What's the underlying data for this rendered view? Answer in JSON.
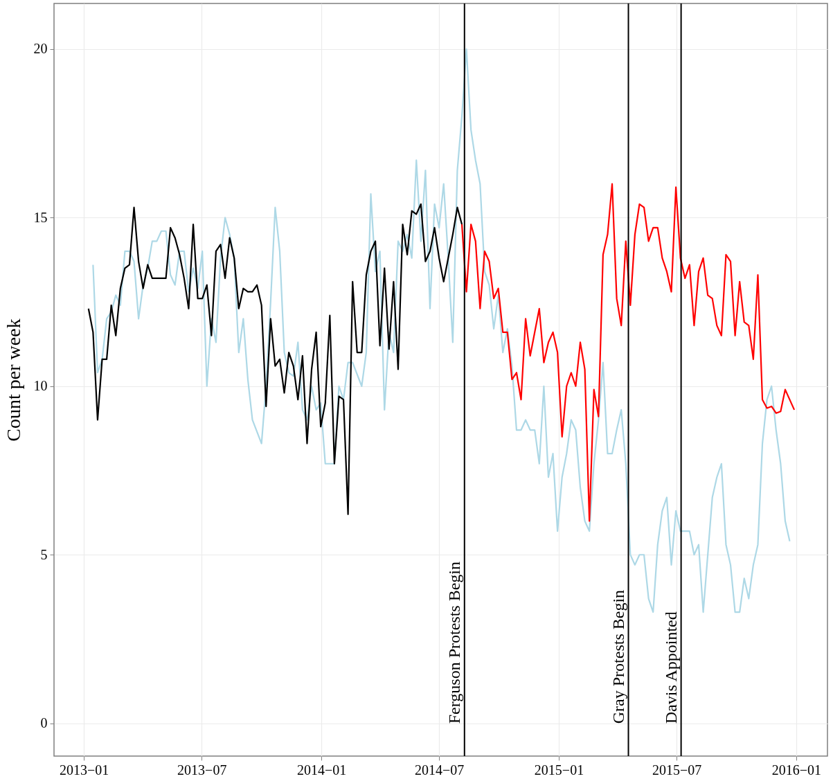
{
  "chart_data": {
    "type": "line",
    "ylabel": "Count per week",
    "grid": true,
    "xlim": [
      "2012-11-16",
      "2016-02-18"
    ],
    "xticks": [
      {
        "value": "2013-01-01",
        "label": "2013−01"
      },
      {
        "value": "2013-07-01",
        "label": "2013−07"
      },
      {
        "value": "2014-01-01",
        "label": "2014−01"
      },
      {
        "value": "2014-07-01",
        "label": "2014−07"
      },
      {
        "value": "2015-01-01",
        "label": "2015−01"
      },
      {
        "value": "2015-07-01",
        "label": "2015−07"
      },
      {
        "value": "2016-01-01",
        "label": "2016−01"
      }
    ],
    "ylim": [
      -0.97,
      21.35
    ],
    "yticks": [
      0,
      5,
      10,
      15,
      20
    ],
    "series": [
      {
        "color": "#add8e6",
        "x": [
          "2013-01-15",
          "2013-01-22",
          "2013-01-29",
          "2013-02-05",
          "2013-02-12",
          "2013-02-19",
          "2013-02-26",
          "2013-03-05",
          "2013-03-12",
          "2013-03-19",
          "2013-03-26",
          "2013-04-02",
          "2013-04-09",
          "2013-04-16",
          "2013-04-23",
          "2013-04-30",
          "2013-05-07",
          "2013-05-14",
          "2013-05-21",
          "2013-05-28",
          "2013-06-04",
          "2013-06-11",
          "2013-06-18",
          "2013-06-25",
          "2013-07-02",
          "2013-07-09",
          "2013-07-16",
          "2013-07-23",
          "2013-07-30",
          "2013-08-06",
          "2013-08-13",
          "2013-08-20",
          "2013-08-27",
          "2013-09-03",
          "2013-09-10",
          "2013-09-17",
          "2013-10-01",
          "2013-10-08",
          "2013-10-15",
          "2013-10-22",
          "2013-10-29",
          "2013-11-05",
          "2013-11-12",
          "2013-11-19",
          "2013-11-26",
          "2013-12-03",
          "2013-12-10",
          "2013-12-17",
          "2013-12-24",
          "2013-12-31",
          "2014-01-07",
          "2014-01-21",
          "2014-01-28",
          "2014-02-04",
          "2014-02-11",
          "2014-02-18",
          "2014-03-04",
          "2014-03-11",
          "2014-03-18",
          "2014-03-25",
          "2014-04-01",
          "2014-04-08",
          "2014-04-15",
          "2014-04-22",
          "2014-04-29",
          "2014-05-06",
          "2014-05-13",
          "2014-05-20",
          "2014-05-27",
          "2014-06-03",
          "2014-06-10",
          "2014-06-17",
          "2014-06-24",
          "2014-07-01",
          "2014-07-08",
          "2014-07-15",
          "2014-07-22",
          "2014-07-29",
          "2014-08-05",
          "2014-08-12",
          "2014-08-19",
          "2014-08-26",
          "2014-09-02",
          "2014-09-09",
          "2014-09-16",
          "2014-09-23",
          "2014-09-30",
          "2014-10-07",
          "2014-10-14",
          "2014-10-21",
          "2014-10-28",
          "2014-11-04",
          "2014-11-11",
          "2014-11-18",
          "2014-11-25",
          "2014-12-02",
          "2014-12-09",
          "2014-12-16",
          "2014-12-23",
          "2014-12-30",
          "2015-01-06",
          "2015-01-13",
          "2015-01-20",
          "2015-01-27",
          "2015-02-03",
          "2015-02-10",
          "2015-02-17",
          "2015-02-24",
          "2015-03-03",
          "2015-03-10",
          "2015-03-17",
          "2015-03-24",
          "2015-03-31",
          "2015-04-07",
          "2015-04-14",
          "2015-04-21",
          "2015-04-28",
          "2015-05-05",
          "2015-05-12",
          "2015-05-19",
          "2015-05-26",
          "2015-06-02",
          "2015-06-09",
          "2015-06-16",
          "2015-06-23",
          "2015-06-30",
          "2015-07-07",
          "2015-07-21",
          "2015-07-28",
          "2015-08-04",
          "2015-08-11",
          "2015-08-25",
          "2015-09-01",
          "2015-09-08",
          "2015-09-15",
          "2015-09-22",
          "2015-09-29",
          "2015-10-06",
          "2015-10-13",
          "2015-10-20",
          "2015-10-27",
          "2015-11-03",
          "2015-11-10",
          "2015-11-17",
          "2015-11-24",
          "2015-12-01",
          "2015-12-08",
          "2015-12-15",
          "2015-12-22"
        ],
        "values": [
          13.6,
          10.4,
          10.8,
          12.0,
          12.2,
          12.7,
          12.4,
          14.0,
          14.0,
          13.7,
          12.0,
          13.0,
          13.5,
          14.3,
          14.3,
          14.6,
          14.6,
          13.3,
          13.0,
          14.0,
          14.0,
          12.8,
          13.5,
          12.9,
          14.0,
          10.0,
          12.0,
          11.3,
          13.8,
          15.0,
          14.5,
          13.8,
          11.0,
          12.0,
          10.2,
          9.0,
          8.3,
          10.0,
          12.5,
          15.3,
          14.0,
          11.0,
          10.4,
          10.3,
          11.3,
          9.3,
          9.0,
          10.0,
          9.3,
          9.5,
          7.7,
          7.7,
          10.0,
          9.6,
          10.7,
          10.7,
          10.0,
          11.0,
          15.7,
          13.4,
          14.0,
          9.3,
          11.6,
          11.0,
          14.3,
          14.0,
          14.5,
          13.8,
          16.7,
          14.3,
          16.4,
          12.3,
          15.4,
          14.7,
          16.0,
          13.8,
          11.3,
          16.4,
          18.0,
          20.0,
          17.6,
          16.7,
          16.0,
          13.4,
          13.0,
          11.7,
          12.7,
          11.0,
          11.7,
          10.6,
          8.7,
          8.7,
          9.0,
          8.7,
          8.7,
          7.7,
          10.0,
          7.3,
          8.0,
          5.7,
          7.3,
          8.0,
          9.0,
          8.7,
          7.0,
          6.0,
          5.7,
          7.7,
          9.0,
          10.7,
          8.0,
          8.0,
          8.7,
          9.3,
          7.7,
          5.0,
          4.7,
          5.0,
          5.0,
          3.7,
          3.3,
          5.3,
          6.3,
          6.7,
          4.7,
          6.3,
          5.7,
          5.7,
          5.0,
          5.3,
          3.3,
          6.7,
          7.3,
          7.7,
          5.3,
          4.7,
          3.3,
          3.3,
          4.3,
          3.7,
          4.7,
          5.3,
          8.3,
          9.6,
          10.0,
          8.7,
          7.7,
          6.0,
          5.4
        ]
      },
      {
        "color": "#000000",
        "x": [
          "2013-01-08",
          "2013-01-15",
          "2013-01-22",
          "2013-01-29",
          "2013-02-05",
          "2013-02-12",
          "2013-02-19",
          "2013-02-26",
          "2013-03-05",
          "2013-03-12",
          "2013-03-19",
          "2013-03-26",
          "2013-04-02",
          "2013-04-09",
          "2013-04-16",
          "2013-04-23",
          "2013-04-30",
          "2013-05-07",
          "2013-05-14",
          "2013-05-21",
          "2013-05-28",
          "2013-06-04",
          "2013-06-11",
          "2013-06-18",
          "2013-06-25",
          "2013-07-02",
          "2013-07-09",
          "2013-07-16",
          "2013-07-23",
          "2013-07-30",
          "2013-08-06",
          "2013-08-13",
          "2013-08-20",
          "2013-08-27",
          "2013-09-03",
          "2013-09-10",
          "2013-09-17",
          "2013-09-24",
          "2013-10-01",
          "2013-10-08",
          "2013-10-15",
          "2013-10-22",
          "2013-10-29",
          "2013-11-05",
          "2013-11-12",
          "2013-11-19",
          "2013-11-26",
          "2013-12-03",
          "2013-12-10",
          "2013-12-17",
          "2013-12-24",
          "2013-12-31",
          "2014-01-07",
          "2014-01-14",
          "2014-01-21",
          "2014-01-28",
          "2014-02-04",
          "2014-02-11",
          "2014-02-18",
          "2014-02-25",
          "2014-03-04",
          "2014-03-11",
          "2014-03-18",
          "2014-03-25",
          "2014-04-01",
          "2014-04-08",
          "2014-04-15",
          "2014-04-22",
          "2014-04-29",
          "2014-05-06",
          "2014-05-13",
          "2014-05-20",
          "2014-05-27",
          "2014-06-03",
          "2014-06-10",
          "2014-06-17",
          "2014-06-24",
          "2014-07-01",
          "2014-07-08",
          "2014-07-15",
          "2014-07-22",
          "2014-07-29",
          "2014-08-05"
        ],
        "values": [
          12.3,
          11.6,
          9.0,
          10.8,
          10.8,
          12.4,
          11.5,
          12.9,
          13.5,
          13.6,
          15.3,
          13.7,
          12.9,
          13.6,
          13.2,
          13.2,
          13.2,
          13.2,
          14.7,
          14.4,
          13.9,
          13.2,
          12.3,
          14.8,
          12.6,
          12.6,
          13.0,
          11.5,
          14.0,
          14.2,
          13.2,
          14.4,
          13.8,
          12.3,
          12.9,
          12.8,
          12.8,
          13.0,
          12.4,
          9.4,
          12.0,
          10.6,
          10.8,
          9.8,
          11.0,
          10.6,
          9.6,
          10.9,
          8.3,
          10.5,
          11.6,
          8.8,
          9.5,
          12.1,
          7.7,
          9.7,
          9.6,
          6.2,
          13.1,
          11.0,
          11.0,
          13.3,
          14.0,
          14.3,
          11.2,
          13.5,
          11.1,
          13.1,
          10.5,
          14.8,
          13.9,
          15.2,
          15.1,
          15.4,
          13.7,
          14.0,
          14.7,
          13.8,
          13.1,
          13.8,
          14.5,
          15.3,
          14.8
        ]
      },
      {
        "color": "#ff0000",
        "x": [
          "2014-08-05",
          "2014-08-12",
          "2014-08-19",
          "2014-08-26",
          "2014-09-02",
          "2014-09-09",
          "2014-09-16",
          "2014-09-23",
          "2014-09-30",
          "2014-10-07",
          "2014-10-14",
          "2014-10-21",
          "2014-10-28",
          "2014-11-04",
          "2014-11-11",
          "2014-11-18",
          "2014-11-25",
          "2014-12-02",
          "2014-12-09",
          "2014-12-16",
          "2014-12-23",
          "2014-12-30",
          "2015-01-06",
          "2015-01-13",
          "2015-01-20",
          "2015-01-27",
          "2015-02-03",
          "2015-02-10",
          "2015-02-17",
          "2015-02-24",
          "2015-03-03",
          "2015-03-10",
          "2015-03-17",
          "2015-03-24",
          "2015-03-31",
          "2015-04-07",
          "2015-04-14",
          "2015-04-21",
          "2015-04-28",
          "2015-05-05",
          "2015-05-12",
          "2015-05-19",
          "2015-05-26",
          "2015-06-02",
          "2015-06-09",
          "2015-06-16",
          "2015-06-23",
          "2015-06-30",
          "2015-07-07",
          "2015-07-14",
          "2015-07-21",
          "2015-07-28",
          "2015-08-04",
          "2015-08-11",
          "2015-08-18",
          "2015-08-25",
          "2015-09-01",
          "2015-09-08",
          "2015-09-15",
          "2015-09-22",
          "2015-09-29",
          "2015-10-06",
          "2015-10-13",
          "2015-10-20",
          "2015-10-27",
          "2015-11-03",
          "2015-11-10",
          "2015-11-17",
          "2015-11-24",
          "2015-12-01",
          "2015-12-08",
          "2015-12-15",
          "2015-12-29"
        ],
        "values": [
          14.8,
          12.8,
          14.8,
          14.3,
          12.3,
          14.0,
          13.7,
          12.6,
          12.9,
          11.6,
          11.6,
          10.2,
          10.4,
          9.6,
          12.0,
          10.9,
          11.6,
          12.3,
          10.7,
          11.3,
          11.6,
          11.0,
          8.5,
          10.0,
          10.4,
          10.0,
          11.3,
          10.5,
          6.0,
          9.9,
          9.1,
          13.9,
          14.5,
          16.0,
          12.6,
          11.8,
          14.3,
          12.4,
          14.5,
          15.4,
          15.3,
          14.3,
          14.7,
          14.7,
          13.8,
          13.4,
          12.8,
          15.9,
          13.8,
          13.2,
          13.6,
          11.8,
          13.4,
          13.8,
          12.7,
          12.6,
          11.8,
          11.5,
          13.9,
          13.7,
          11.5,
          13.1,
          11.9,
          11.8,
          10.8,
          13.3,
          9.6,
          9.35,
          9.4,
          9.2,
          9.25,
          9.9,
          9.3
        ]
      }
    ],
    "ref_lines": [
      {
        "axis": "x",
        "value": "2014-08-09",
        "label": "Ferguson Protests Begin",
        "color": "#000000"
      },
      {
        "axis": "x",
        "value": "2015-04-18",
        "label": "Gray Protests Begin",
        "color": "#000000"
      },
      {
        "axis": "x",
        "value": "2015-07-08",
        "label": "Davis Appointed",
        "color": "#000000"
      }
    ]
  }
}
